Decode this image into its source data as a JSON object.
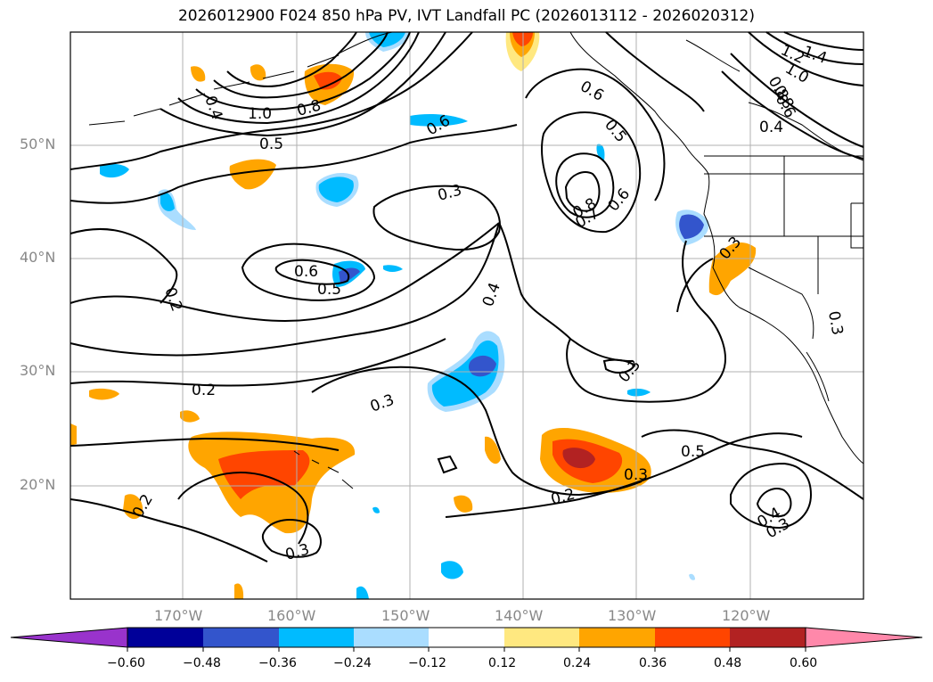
{
  "title": "2026012900 F024 850 hPa PV, IVT Landfall PC (2026013112 - 2026020312)",
  "lat_labels": [
    "50°N",
    "40°N",
    "30°N",
    "20°N"
  ],
  "lon_labels": [
    "170°W",
    "160°W",
    "150°W",
    "140°W",
    "130°W",
    "120°W"
  ],
  "contour_labels": [
    "1.4",
    "1.2",
    "1.0",
    "0.8",
    "0.8",
    "0.6",
    "0.6",
    "0.5",
    "0.4",
    "0.4",
    "1.0",
    "0.8",
    "0.6",
    "0.5",
    "0.3",
    "0.6",
    "0.5",
    "0.2",
    "0.2",
    "0.3",
    "0.4",
    "0.8",
    "0.7",
    "0.6",
    "0.3",
    "0.3",
    "0.3",
    "0.5",
    "0.3",
    "0.2",
    "0.2",
    "0.3",
    "0.3",
    "0.4"
  ],
  "colorbar": {
    "ticks": [
      "−0.60",
      "−0.48",
      "−0.36",
      "−0.24",
      "−0.12",
      "0.12",
      "0.24",
      "0.36",
      "0.48",
      "0.60"
    ],
    "colors": [
      "#9933cc",
      "#000099",
      "#3355cc",
      "#00bbff",
      "#aaddff",
      "#ffffff",
      "#ffe880",
      "#ffa500",
      "#ff4500",
      "#b22222",
      "#ff88aa"
    ]
  },
  "colors": {
    "frame": "#000000",
    "grid": "#b0b0b0",
    "axis_label": "#888888"
  }
}
